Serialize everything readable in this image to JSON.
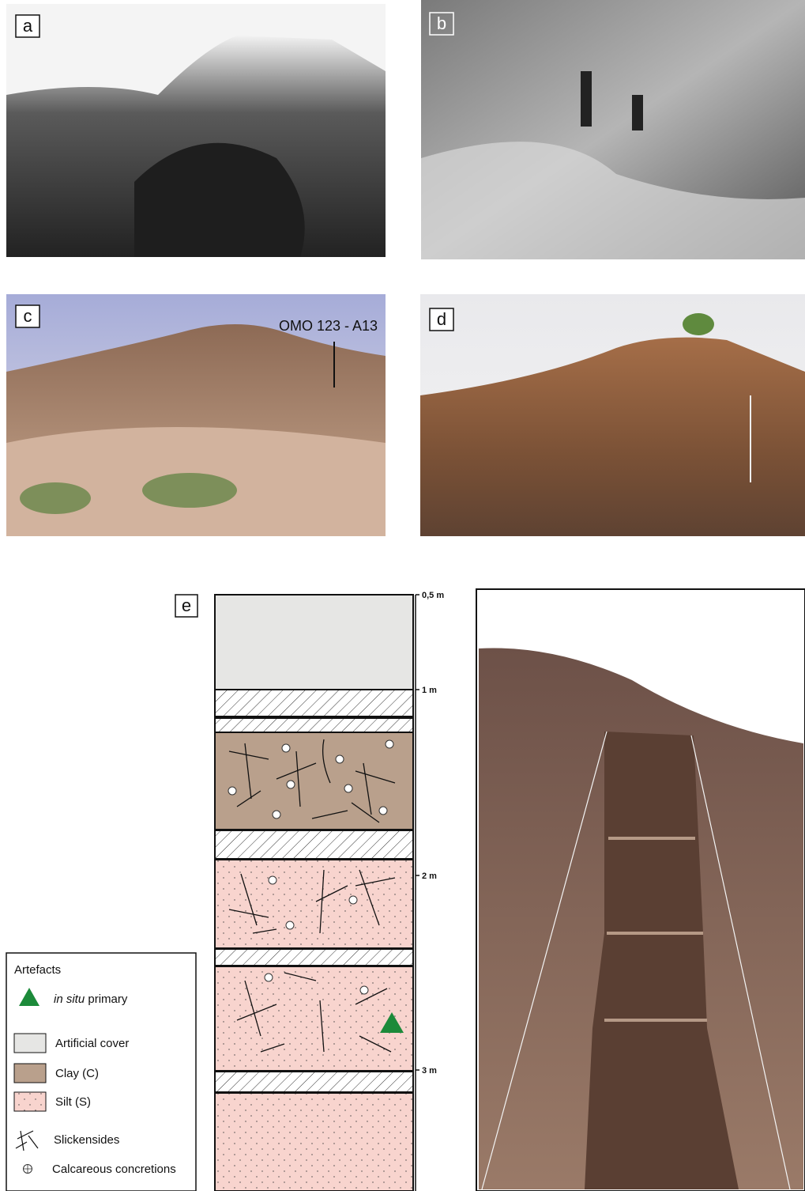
{
  "panels": [
    {
      "label": "a"
    },
    {
      "label": "b"
    },
    {
      "label": "c",
      "annotation": "OMO 123 - A13"
    },
    {
      "label": "d"
    },
    {
      "label": "e"
    }
  ],
  "scale": {
    "ticks": [
      "0,5 m",
      "1 m",
      "2 m",
      "3 m"
    ]
  },
  "legend": {
    "title": "Artefacts",
    "items": [
      {
        "italic": "in situ",
        "text": "primary"
      },
      {
        "text": "Artificial cover"
      },
      {
        "text": "Clay (C)"
      },
      {
        "text": "Silt (S)"
      },
      {
        "text": "Slickensides"
      },
      {
        "text": "Calcareous concretions"
      }
    ]
  }
}
